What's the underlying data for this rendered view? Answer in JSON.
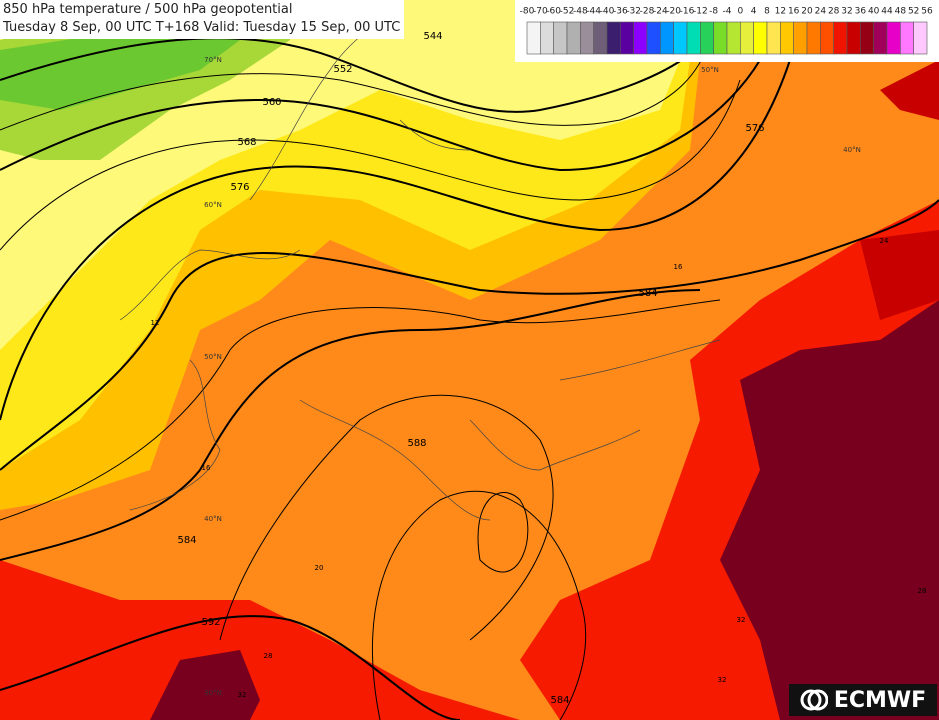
{
  "header": {
    "title": "850 hPa temperature / 500 hPa geopotential",
    "subtitle": "Tuesday 8 Sep, 00 UTC T+168 Valid: Tuesday 15 Sep, 00 UTC"
  },
  "colorbar": {
    "labels": [
      -80,
      -70,
      -60,
      -52,
      -48,
      -44,
      -40,
      -36,
      -32,
      -28,
      -24,
      -20,
      -16,
      -12,
      -8,
      -4,
      0,
      4,
      8,
      12,
      16,
      20,
      24,
      28,
      32,
      36,
      40,
      44,
      48,
      52,
      56
    ],
    "colors": [
      "#f4f4f4",
      "#dcdcdc",
      "#c6c6c6",
      "#b0b0b0",
      "#9a8e9a",
      "#6e5e78",
      "#3c1e6e",
      "#5a00a0",
      "#8c00ff",
      "#1e50ff",
      "#0096ff",
      "#00c8ff",
      "#00dcb4",
      "#28d25a",
      "#78dc28",
      "#b4e632",
      "#e6f03c",
      "#ffff00",
      "#ffe650",
      "#ffc800",
      "#ffa000",
      "#ff7800",
      "#ff5000",
      "#f01400",
      "#c80000",
      "#960014",
      "#a0005a",
      "#e600c8",
      "#ff78ff",
      "#ffc8ff"
    ]
  },
  "contours": {
    "geopotential": [
      "544",
      "552",
      "560",
      "568",
      "576",
      "576",
      "584",
      "584",
      "584",
      "588",
      "592"
    ],
    "temperature": [
      "12",
      "16",
      "16",
      "20",
      "24",
      "28",
      "28",
      "32",
      "32",
      "32"
    ]
  },
  "latitudes": [
    "70°N",
    "60°N",
    "50°N",
    "50°N",
    "40°N",
    "40°N",
    "30°N"
  ],
  "logo": "ECMWF"
}
